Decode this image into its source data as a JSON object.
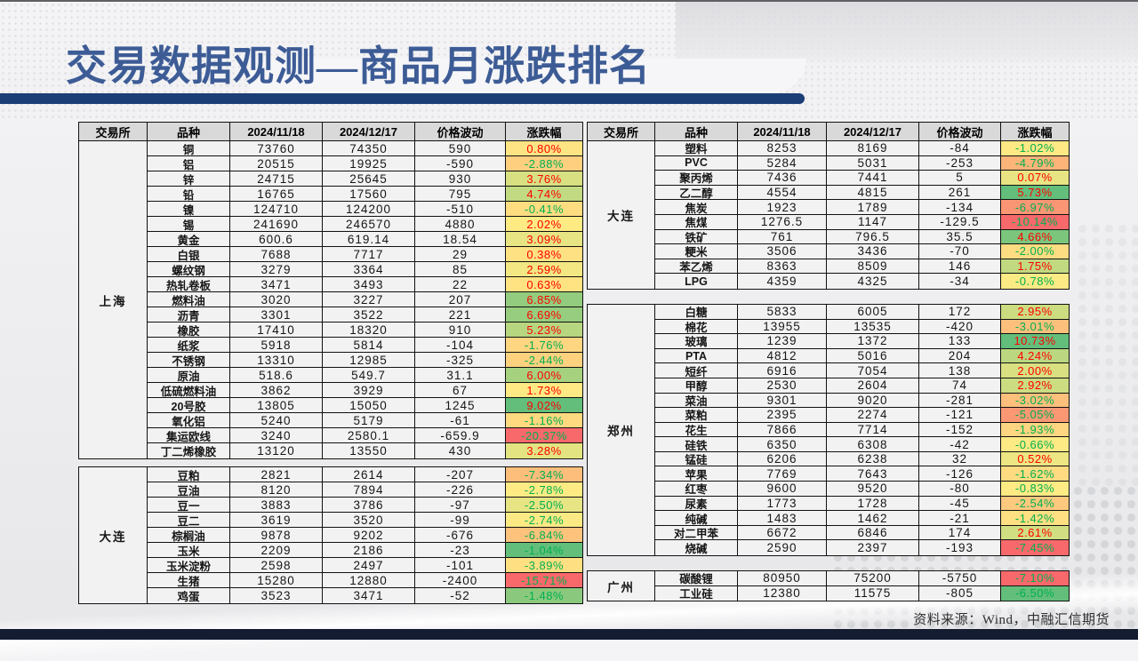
{
  "slide": {
    "title": "交易数据观测—商品月涨跌排名",
    "source_note": "资料来源：Wind，中融汇信期货"
  },
  "colors": {
    "title_text": "#3D5C96",
    "accent_bar": "#1C3E77",
    "bottom_bar": "#141C32",
    "table_header_bg": "#D9D9D9",
    "scale_negative": "#F8696B",
    "scale_middle": "#FFEB84",
    "scale_positive": "#63BE7B",
    "text_positive": "#FF0000",
    "text_negative": "#00B050"
  },
  "table": {
    "columns": [
      "交易所",
      "品种",
      "2024/11/18",
      "2024/12/17",
      "价格波动",
      "涨跌幅"
    ],
    "left": {
      "sections": [
        {
          "exchange": "上海",
          "rows": [
            [
              "铜",
              "73760",
              "74350",
              "590",
              "0.80%"
            ],
            [
              "铝",
              "20515",
              "19925",
              "-590",
              "-2.88%"
            ],
            [
              "锌",
              "24715",
              "25645",
              "930",
              "3.76%"
            ],
            [
              "铅",
              "16765",
              "17560",
              "795",
              "4.74%"
            ],
            [
              "镍",
              "124710",
              "124200",
              "-510",
              "-0.41%"
            ],
            [
              "锡",
              "241690",
              "246570",
              "4880",
              "2.02%"
            ],
            [
              "黄金",
              "600.6",
              "619.14",
              "18.54",
              "3.09%"
            ],
            [
              "白银",
              "7688",
              "7717",
              "29",
              "0.38%"
            ],
            [
              "螺纹钢",
              "3279",
              "3364",
              "85",
              "2.59%"
            ],
            [
              "热轧卷板",
              "3471",
              "3493",
              "22",
              "0.63%"
            ],
            [
              "燃料油",
              "3020",
              "3227",
              "207",
              "6.85%"
            ],
            [
              "沥青",
              "3301",
              "3522",
              "221",
              "6.69%"
            ],
            [
              "橡胶",
              "17410",
              "18320",
              "910",
              "5.23%"
            ],
            [
              "纸浆",
              "5918",
              "5814",
              "-104",
              "-1.76%"
            ],
            [
              "不锈钢",
              "13310",
              "12985",
              "-325",
              "-2.44%"
            ],
            [
              "原油",
              "518.6",
              "549.7",
              "31.1",
              "6.00%"
            ],
            [
              "低硫燃料油",
              "3862",
              "3929",
              "67",
              "1.73%"
            ],
            [
              "20号胶",
              "13805",
              "15050",
              "1245",
              "9.02%"
            ],
            [
              "氧化铝",
              "5240",
              "5179",
              "-61",
              "-1.16%"
            ],
            [
              "集运欧线",
              "3240",
              "2580.1",
              "-659.9",
              "-20.37%"
            ],
            [
              "丁二烯橡胶",
              "13120",
              "13550",
              "430",
              "3.28%"
            ]
          ]
        },
        {
          "exchange": "大连",
          "rows": [
            [
              "豆粕",
              "2821",
              "2614",
              "-207",
              "-7.34%"
            ],
            [
              "豆油",
              "8120",
              "7894",
              "-226",
              "-2.78%"
            ],
            [
              "豆一",
              "3883",
              "3786",
              "-97",
              "-2.50%"
            ],
            [
              "豆二",
              "3619",
              "3520",
              "-99",
              "-2.74%"
            ],
            [
              "棕榈油",
              "9878",
              "9202",
              "-676",
              "-6.84%"
            ],
            [
              "玉米",
              "2209",
              "2186",
              "-23",
              "-1.04%"
            ],
            [
              "玉米淀粉",
              "2598",
              "2497",
              "-101",
              "-3.89%"
            ],
            [
              "生猪",
              "15280",
              "12880",
              "-2400",
              "-15.71%"
            ],
            [
              "鸡蛋",
              "3523",
              "3471",
              "-52",
              "-1.48%"
            ]
          ]
        }
      ]
    },
    "right": {
      "sections": [
        {
          "exchange": "大连",
          "rows": [
            [
              "塑料",
              "8253",
              "8169",
              "-84",
              "-1.02%"
            ],
            [
              "PVC",
              "5284",
              "5031",
              "-253",
              "-4.79%"
            ],
            [
              "聚丙烯",
              "7436",
              "7441",
              "5",
              "0.07%"
            ],
            [
              "乙二醇",
              "4554",
              "4815",
              "261",
              "5.73%"
            ],
            [
              "焦炭",
              "1923",
              "1789",
              "-134",
              "-6.97%"
            ],
            [
              "焦煤",
              "1276.5",
              "1147",
              "-129.5",
              "-10.14%"
            ],
            [
              "铁矿",
              "761",
              "796.5",
              "35.5",
              "4.66%"
            ],
            [
              "粳米",
              "3506",
              "3436",
              "-70",
              "-2.00%"
            ],
            [
              "苯乙烯",
              "8363",
              "8509",
              "146",
              "1.75%"
            ],
            [
              "LPG",
              "4359",
              "4325",
              "-34",
              "-0.78%"
            ]
          ]
        },
        {
          "exchange": "郑州",
          "rows": [
            [
              "白糖",
              "5833",
              "6005",
              "172",
              "2.95%"
            ],
            [
              "棉花",
              "13955",
              "13535",
              "-420",
              "-3.01%"
            ],
            [
              "玻璃",
              "1239",
              "1372",
              "133",
              "10.73%"
            ],
            [
              "PTA",
              "4812",
              "5016",
              "204",
              "4.24%"
            ],
            [
              "短纤",
              "6916",
              "7054",
              "138",
              "2.00%"
            ],
            [
              "甲醇",
              "2530",
              "2604",
              "74",
              "2.92%"
            ],
            [
              "菜油",
              "9301",
              "9020",
              "-281",
              "-3.02%"
            ],
            [
              "菜粕",
              "2395",
              "2274",
              "-121",
              "-5.05%"
            ],
            [
              "花生",
              "7866",
              "7714",
              "-152",
              "-1.93%"
            ],
            [
              "硅铁",
              "6350",
              "6308",
              "-42",
              "-0.66%"
            ],
            [
              "锰硅",
              "6206",
              "6238",
              "32",
              "0.52%"
            ],
            [
              "苹果",
              "7769",
              "7643",
              "-126",
              "-1.62%"
            ],
            [
              "红枣",
              "9600",
              "9520",
              "-80",
              "-0.83%"
            ],
            [
              "尿素",
              "1773",
              "1728",
              "-45",
              "-2.54%"
            ],
            [
              "纯碱",
              "1483",
              "1462",
              "-21",
              "-1.42%"
            ],
            [
              "对二甲苯",
              "6672",
              "6846",
              "174",
              "2.61%"
            ],
            [
              "烧碱",
              "2590",
              "2397",
              "-193",
              "-7.45%"
            ]
          ]
        },
        {
          "exchange": "广州",
          "rows": [
            [
              "碳酸锂",
              "80950",
              "75200",
              "-5750",
              "-7.10%"
            ],
            [
              "工业硅",
              "12380",
              "11575",
              "-805",
              "-6.50%"
            ]
          ]
        }
      ]
    }
  }
}
